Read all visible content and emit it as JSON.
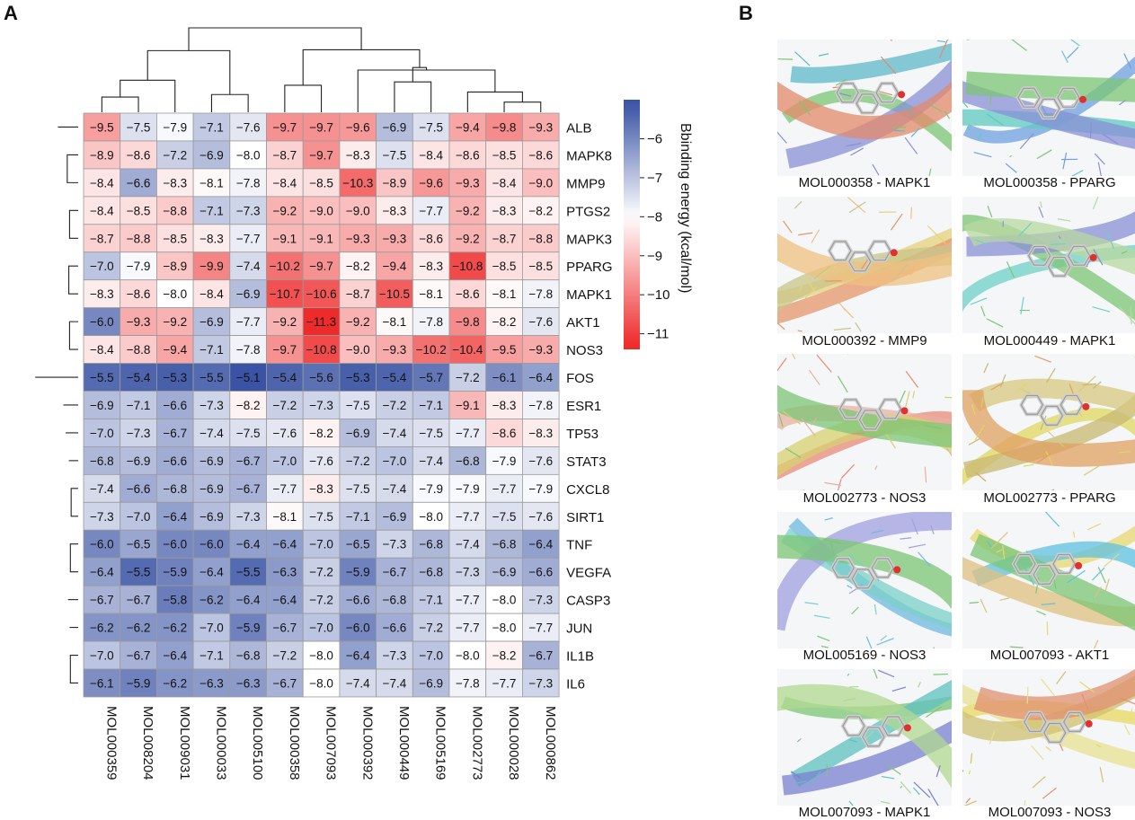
{
  "panel_labels": {
    "a": "A",
    "b": "B"
  },
  "chart_data": {
    "type": "heatmap",
    "title": "",
    "columns": [
      "MOL000359",
      "MOL008204",
      "MOL009031",
      "MOL000033",
      "MOL005100",
      "MOL000358",
      "MOL007093",
      "MOL000392",
      "MOL000449",
      "MOL005169",
      "MOL002773",
      "MOL000028",
      "MOL000862"
    ],
    "rows": [
      "ALB",
      "MAPK8",
      "MMP9",
      "PTGS2",
      "MAPK3",
      "PPARG",
      "MAPK1",
      "AKT1",
      "NOS3",
      "FOS",
      "ESR1",
      "TP53",
      "STAT3",
      "CXCL8",
      "SIRT1",
      "TNF",
      "VEGFA",
      "CASP3",
      "JUN",
      "IL1B",
      "IL6"
    ],
    "values": [
      [
        -9.5,
        -7.5,
        -7.9,
        -7.1,
        -7.6,
        -9.7,
        -9.7,
        -9.6,
        -6.9,
        -7.5,
        -9.4,
        -9.8,
        -9.3
      ],
      [
        -8.9,
        -8.6,
        -7.2,
        -6.9,
        -8.0,
        -8.7,
        -9.7,
        -8.3,
        -7.5,
        -8.4,
        -8.6,
        -8.5,
        -8.6
      ],
      [
        -8.4,
        -6.6,
        -8.3,
        -8.1,
        -7.8,
        -8.4,
        -8.5,
        -10.3,
        -8.9,
        -9.6,
        -9.3,
        -8.4,
        -9.0
      ],
      [
        -8.4,
        -8.5,
        -8.8,
        -7.1,
        -7.3,
        -9.2,
        -9.0,
        -9.0,
        -8.3,
        -7.7,
        -9.2,
        -8.3,
        -8.2
      ],
      [
        -8.7,
        -8.8,
        -8.5,
        -8.3,
        -7.7,
        -9.1,
        -9.1,
        -9.3,
        -9.3,
        -8.6,
        -9.2,
        -8.7,
        -8.8
      ],
      [
        -7.0,
        -7.9,
        -8.9,
        -9.9,
        -7.4,
        -10.2,
        -9.7,
        -8.2,
        -9.4,
        -8.3,
        -10.8,
        -8.5,
        -8.5
      ],
      [
        -8.3,
        -8.6,
        -8.0,
        -8.4,
        -6.9,
        -10.7,
        -10.6,
        -8.7,
        -10.5,
        -8.1,
        -8.6,
        -8.1,
        -7.8
      ],
      [
        -6.0,
        -9.3,
        -9.2,
        -6.9,
        -7.7,
        -9.2,
        -11.3,
        -9.2,
        -8.1,
        -7.8,
        -9.8,
        -8.2,
        -7.6
      ],
      [
        -8.4,
        -8.8,
        -9.4,
        -7.1,
        -7.8,
        -9.7,
        -10.8,
        -9.0,
        -9.3,
        -10.2,
        -10.4,
        -9.5,
        -9.3
      ],
      [
        -5.5,
        -5.4,
        -5.3,
        -5.5,
        -5.1,
        -5.4,
        -5.6,
        -5.3,
        -5.4,
        -5.7,
        -7.2,
        -6.1,
        -6.4
      ],
      [
        -6.9,
        -7.1,
        -6.6,
        -7.3,
        -8.2,
        -7.2,
        -7.3,
        -7.5,
        -7.2,
        -7.1,
        -9.1,
        -8.3,
        -7.8
      ],
      [
        -7.0,
        -7.3,
        -6.7,
        -7.4,
        -7.5,
        -7.6,
        -8.2,
        -6.9,
        -7.4,
        -7.5,
        -7.7,
        -8.6,
        -8.3
      ],
      [
        -6.8,
        -6.9,
        -6.6,
        -6.9,
        -6.7,
        -7.0,
        -7.6,
        -7.2,
        -7.0,
        -7.4,
        -6.8,
        -7.9,
        -7.6
      ],
      [
        -7.4,
        -6.6,
        -6.8,
        -6.9,
        -6.7,
        -7.7,
        -8.3,
        -7.5,
        -7.4,
        -7.9,
        -7.9,
        -7.7,
        -7.9
      ],
      [
        -7.3,
        -7.0,
        -6.4,
        -6.9,
        -7.3,
        -8.1,
        -7.5,
        -7.1,
        -6.9,
        -8.0,
        -7.7,
        -7.5,
        -7.6
      ],
      [
        -6.0,
        -6.5,
        -6.0,
        -6.0,
        -6.4,
        -6.4,
        -7.0,
        -6.5,
        -7.3,
        -6.8,
        -7.4,
        -6.8,
        -6.4
      ],
      [
        -6.4,
        -5.5,
        -5.9,
        -6.4,
        -5.5,
        -6.3,
        -7.2,
        -5.9,
        -6.7,
        -6.8,
        -7.3,
        -6.9,
        -6.6
      ],
      [
        -6.7,
        -6.7,
        -5.8,
        -6.2,
        -6.4,
        -6.4,
        -7.2,
        -6.6,
        -6.8,
        -7.1,
        -7.7,
        -8.0,
        -7.3
      ],
      [
        -6.2,
        -6.2,
        -6.2,
        -7.0,
        -5.9,
        -6.7,
        -7.0,
        -6.0,
        -6.6,
        -7.2,
        -7.7,
        -8.0,
        -7.7
      ],
      [
        -7.0,
        -6.7,
        -6.4,
        -7.1,
        -6.8,
        -7.2,
        -8.0,
        -6.4,
        -7.3,
        -7.0,
        -8.0,
        -8.2,
        -6.7
      ],
      [
        -6.1,
        -5.9,
        -6.2,
        -6.3,
        -6.3,
        -6.7,
        -8.0,
        -7.4,
        -7.4,
        -6.9,
        -7.8,
        -7.7,
        -7.3
      ]
    ],
    "color_scale": {
      "min": -11.3,
      "mid": -8.0,
      "max": -5.1,
      "low_color": "#ee2a2a",
      "mid_color": "#ffffff",
      "high_color": "#3a53a4"
    },
    "colorbar": {
      "label": "Bbinding energy (kcal/mol)",
      "ticks": [
        -6,
        -7,
        -8,
        -9,
        -10,
        -11
      ],
      "range": [
        -11.4,
        -5.0
      ]
    },
    "col_dendrogram": [
      {
        "a": 0,
        "b": 1,
        "h": 0.18
      },
      {
        "a": 3,
        "b": 4,
        "h": 0.21
      },
      {
        "a": 13,
        "b": 2,
        "h": 0.38
      },
      {
        "a": 14,
        "b": 15,
        "h": 0.73
      },
      {
        "a": 5,
        "b": 6,
        "h": 0.32
      },
      {
        "a": 8,
        "b": 9,
        "h": 0.36
      },
      {
        "a": 11,
        "b": 12,
        "h": 0.12
      },
      {
        "a": 10,
        "b": 19,
        "h": 0.24
      },
      {
        "a": 20,
        "b": 7,
        "h": 0.5
      },
      {
        "a": 18,
        "b": 21,
        "h": 0.53
      },
      {
        "a": 17,
        "b": 22,
        "h": 0.74
      },
      {
        "a": 16,
        "b": 23,
        "h": 1.0
      }
    ],
    "row_dendrogram": [
      {
        "a": 5,
        "b": 6,
        "h": 0.12
      },
      {
        "a": 7,
        "b": 8,
        "h": 0.11
      },
      {
        "a": 25,
        "b": 26,
        "h": 0.23
      },
      {
        "a": 3,
        "b": 4,
        "h": 0.11
      },
      {
        "a": 1,
        "b": 2,
        "h": 0.14
      },
      {
        "a": 29,
        "b": 28,
        "h": 0.18
      },
      {
        "a": 30,
        "b": 27,
        "h": 0.22
      },
      {
        "a": 0,
        "b": 31,
        "h": 0.26
      },
      {
        "a": 13,
        "b": 14,
        "h": 0.09
      },
      {
        "a": 12,
        "b": 33,
        "h": 0.12
      },
      {
        "a": 11,
        "b": 34,
        "h": 0.16
      },
      {
        "a": 10,
        "b": 35,
        "h": 0.19
      },
      {
        "a": 15,
        "b": 16,
        "h": 0.1
      },
      {
        "a": 19,
        "b": 20,
        "h": 0.1
      },
      {
        "a": 18,
        "b": 38,
        "h": 0.11
      },
      {
        "a": 17,
        "b": 39,
        "h": 0.13
      },
      {
        "a": 37,
        "b": 40,
        "h": 0.17
      },
      {
        "a": 36,
        "b": 41,
        "h": 0.22
      },
      {
        "a": 9,
        "b": 42,
        "h": 0.55
      },
      {
        "a": 32,
        "b": 43,
        "h": 1.0
      }
    ]
  },
  "docking_panels": [
    {
      "caption": "MOL000358 - MAPK1",
      "palette": [
        "#7cc576",
        "#5fb8c9",
        "#8a8fd6",
        "#e48a6a"
      ]
    },
    {
      "caption": "MOL000358 - PPARG",
      "palette": [
        "#6fa0e0",
        "#5fc9c0",
        "#8a8fd6",
        "#7cc576"
      ]
    },
    {
      "caption": "MOL000392 - MMP9",
      "palette": [
        "#e6d27a",
        "#e4966a",
        "#c9c48a",
        "#f0c080"
      ]
    },
    {
      "caption": "MOL000449 - MAPK1",
      "palette": [
        "#6fd0c8",
        "#7cc576",
        "#8a8fd6",
        "#b8d8a0"
      ]
    },
    {
      "caption": "MOL002773 - NOS3",
      "palette": [
        "#e88a7a",
        "#e8b0a0",
        "#d8d070",
        "#7cc576"
      ]
    },
    {
      "caption": "MOL002773 - PPARG",
      "palette": [
        "#e0d860",
        "#c8b870",
        "#d8c880",
        "#e0a060"
      ]
    },
    {
      "caption": "MOL005169 - NOS3",
      "palette": [
        "#6fb8e0",
        "#7cd0c8",
        "#a0a0e0",
        "#7cc576"
      ]
    },
    {
      "caption": "MOL007093 - AKT1",
      "palette": [
        "#e8d870",
        "#5fc0e0",
        "#e0c080",
        "#7cc576"
      ]
    },
    {
      "caption": "MOL007093 - MAPK1",
      "palette": [
        "#7cc576",
        "#5fc0c0",
        "#7a80d0",
        "#b0d890"
      ]
    },
    {
      "caption": "MOL007093 - NOS3",
      "palette": [
        "#e8d860",
        "#e8e090",
        "#d0c070",
        "#e09070"
      ]
    }
  ]
}
